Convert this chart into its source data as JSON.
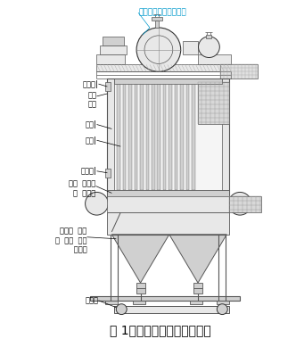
{
  "title": "图 1分室反吹袋式除尘器结构",
  "bg_color": "#ffffff",
  "line_color": "#555555",
  "dark_color": "#333333",
  "label_color": "#000000",
  "cyan_color": "#0099cc",
  "fill_light": "#e8e8e8",
  "fill_mid": "#d0d0d0",
  "fill_dark": "#b8b8b8",
  "labels": {
    "top_label": "反吹风管调节阀排气管",
    "check_door1": "检查门|",
    "top_plate": "顶板\n平台",
    "outer_shell": "外壳|",
    "filter_bag": "滤袋|",
    "check_door2": "检查门|",
    "flower_plate": "花板  检修平\n台  进气管",
    "guide_plate": "导流板  检查\n孔  灰斗  双级\n      卸灰阀",
    "conveyor": "输灰机"
  },
  "ann_fontsize": 6.0,
  "title_fontsize": 10
}
